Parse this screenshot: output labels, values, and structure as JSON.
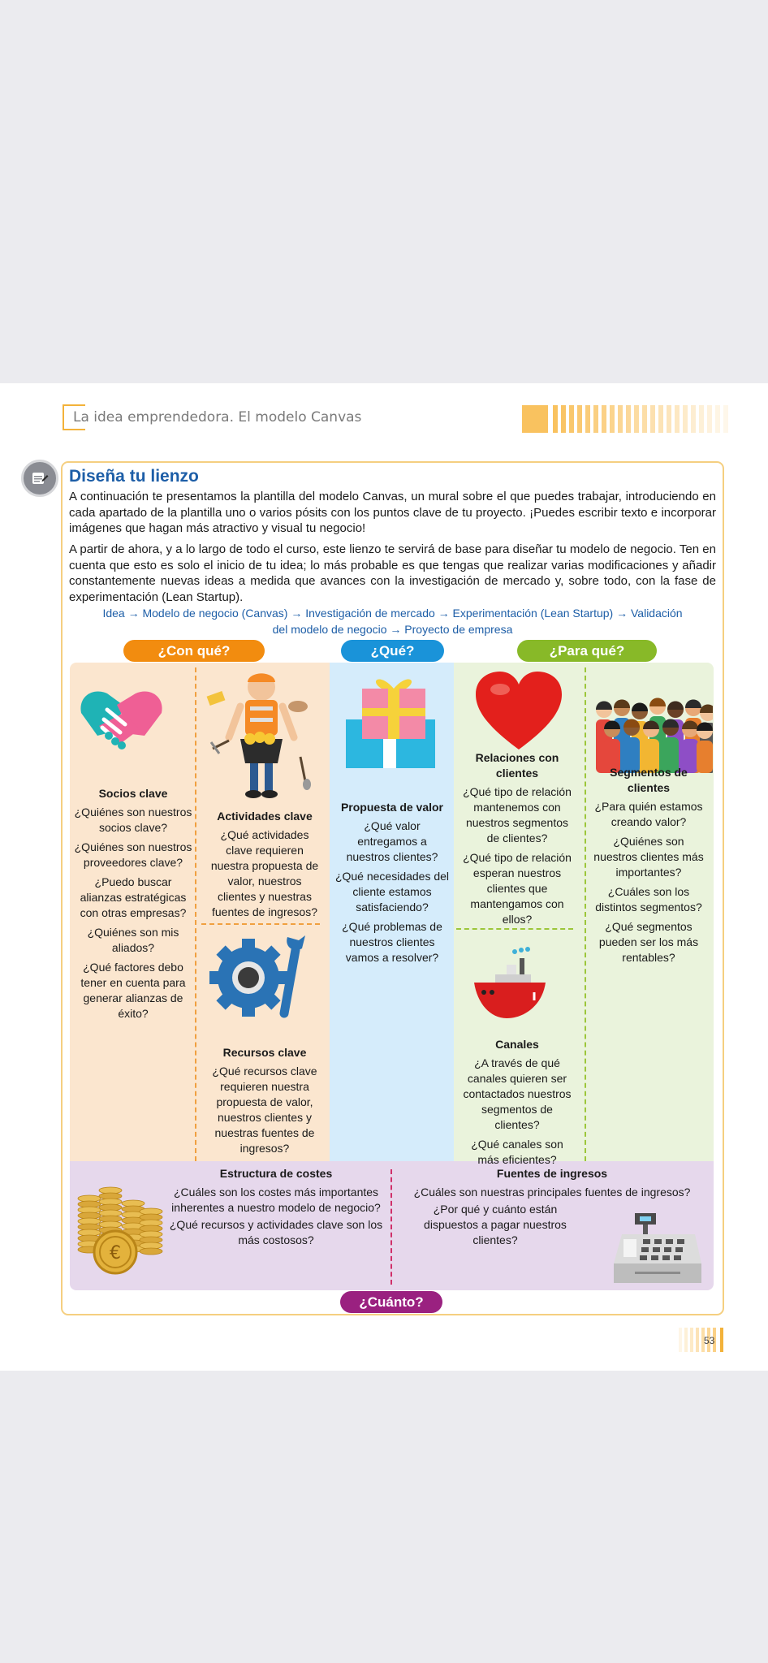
{
  "header": {
    "title": "La idea emprendedora. El modelo Canvas"
  },
  "section": {
    "title": "Diseña tu lienzo",
    "paragraph1": "A continuación te presentamos la plantilla del modelo Canvas, un mural sobre el que puedes trabajar, introduciendo en cada apartado de la plantilla uno o varios pósits con los puntos clave de tu proyecto. ¡Puedes escribir texto e incorporar imágenes que hagan más atractivo y visual tu negocio!",
    "paragraph2": "A partir de ahora, y a lo largo de todo el curso, este lienzo te servirá de base para diseñar tu modelo de negocio. Ten en cuenta que esto es solo el inicio de tu idea; lo más probable es que tengas que realizar varias modificaciones y añadir constantemente nuevas ideas a medida que avances con la investigación de mercado y, sobre todo, con la fase de experimentación (Lean Startup).",
    "flow_line1": "Idea → Modelo de negocio (Canvas) → Investigación de mercado → Experimentación (Lean Startup) → Validación",
    "flow_line2": "del modelo de negocio → Proyecto de empresa"
  },
  "pills": {
    "con_que": "¿Con qué?",
    "que": "¿Qué?",
    "para_que": "¿Para qué?",
    "cuanto": "¿Cuánto?"
  },
  "blocks": {
    "socios": {
      "title": "Socios clave",
      "q": [
        "¿Quiénes son nuestros socios clave?",
        "¿Quiénes son nuestros proveedores clave?",
        "¿Puedo buscar alianzas estratégicas con otras empresas?",
        "¿Quiénes son mis aliados?",
        "¿Qué factores debo tener en cuenta para generar alianzas de éxito?"
      ]
    },
    "actividades": {
      "title": "Actividades clave",
      "q": [
        "¿Qué actividades clave requieren nuestra propuesta de valor, nuestros clientes y nuestras fuentes de ingresos?"
      ]
    },
    "recursos": {
      "title": "Recursos clave",
      "q": [
        "¿Qué recursos clave requieren nuestra propuesta de valor, nuestros clientes y nuestras fuentes de ingresos?"
      ]
    },
    "propuesta": {
      "title": "Propuesta de valor",
      "q": [
        "¿Qué valor entregamos a nuestros clientes?",
        "¿Qué necesidades del cliente estamos satisfaciendo?",
        "¿Qué problemas de nuestros clientes vamos a resolver?"
      ]
    },
    "relaciones": {
      "title": "Relaciones con clientes",
      "q": [
        "¿Qué tipo de relación mantenemos con nuestros segmentos de clientes?",
        "¿Qué tipo de relación esperan nuestros clientes que mantengamos con ellos?"
      ]
    },
    "canales": {
      "title": "Canales",
      "q": [
        "¿A través de qué canales quieren ser contactados nuestros segmentos de clientes?",
        "¿Qué canales son más eficientes?"
      ]
    },
    "segmentos": {
      "title": "Segmentos de clientes",
      "q": [
        "¿Para quién estamos creando valor?",
        "¿Quiénes son nuestros clientes más importantes?",
        "¿Cuáles son los distintos segmentos?",
        "¿Qué segmentos pueden ser los más rentables?"
      ]
    },
    "costes": {
      "title": "Estructura de costes",
      "q": [
        "¿Cuáles son los costes más importantes inherentes a nuestro modelo de negocio?",
        "¿Qué recursos y actividades clave son los más costosos?"
      ]
    },
    "ingresos": {
      "title": "Fuentes de ingresos",
      "q": [
        "¿Cuáles son nuestras principales fuentes de ingresos?",
        "¿Por qué y cuánto están dispuestos a pagar nuestros clientes?"
      ]
    }
  },
  "footer": {
    "page_number": "53"
  },
  "colors": {
    "orange": "#f28c0f",
    "blue": "#1a93d9",
    "green": "#88b928",
    "purple": "#9a2180",
    "title_blue": "#1d5ea7"
  }
}
